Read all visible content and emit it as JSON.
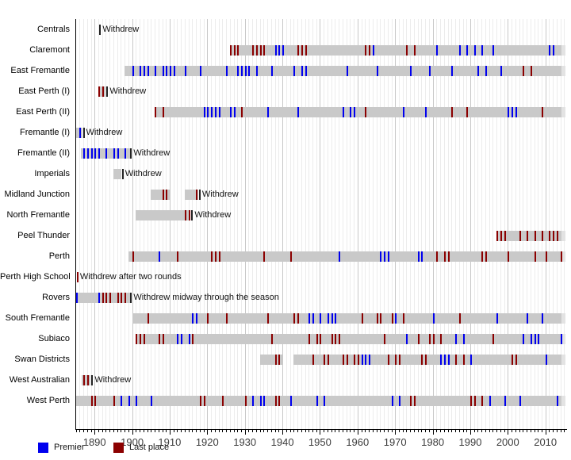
{
  "legend": {
    "premier": "Premier",
    "last_place": "Last place"
  },
  "colors": {
    "premier": "#0000ee",
    "last_place": "#8b0000",
    "bar": "#c9c9c9",
    "bar_current_season": "#e3e3e3",
    "withdrew_marker": "#222222",
    "grid_minor": "#ececec",
    "grid_major": "#c7c7c7",
    "axis": "#000000"
  },
  "chart_data": {
    "type": "timeline",
    "title": "",
    "x_axis": {
      "range_start": 1884,
      "range_end": 2015.5,
      "major_tick_labels": [
        "1890",
        "1900",
        "1910",
        "1920",
        "1930",
        "1940",
        "1950",
        "1960",
        "1970",
        "1980",
        "1990",
        "2000",
        "2010"
      ],
      "major_tick_years": [
        1890,
        1900,
        1910,
        1920,
        1930,
        1940,
        1950,
        1960,
        1970,
        1980,
        1990,
        2000,
        2010
      ],
      "minor_tick_interval": 1,
      "grid": true
    },
    "legend_position": "bottom-left",
    "clubs": [
      {
        "name": "Centrals",
        "segments": [],
        "current": false,
        "premier_years": [],
        "last_place_years": [],
        "withdrew": {
          "label": "Withdrew",
          "year": 1891.3
        }
      },
      {
        "name": "Claremont",
        "segments": [
          [
            1926,
            2015
          ]
        ],
        "current": true,
        "premier_years": [
          1938,
          1939,
          1940,
          1964,
          1981,
          1987,
          1989,
          1991,
          1993,
          1996,
          2011,
          2012
        ],
        "last_place_years": [
          1926,
          1927,
          1928,
          1932,
          1933,
          1934,
          1935,
          1944,
          1945,
          1946,
          1962,
          1963,
          1973,
          1975
        ],
        "withdrew": null
      },
      {
        "name": "East Fremantle",
        "segments": [
          [
            1898,
            2015
          ]
        ],
        "current": true,
        "premier_years": [
          1900,
          1902,
          1903,
          1904,
          1906,
          1908,
          1909,
          1910,
          1911,
          1914,
          1918,
          1925,
          1928,
          1929,
          1930,
          1931,
          1933,
          1937,
          1943,
          1945,
          1946,
          1957,
          1965,
          1974,
          1979,
          1985,
          1992,
          1994,
          1998
        ],
        "last_place_years": [
          2004,
          2006
        ],
        "withdrew": null
      },
      {
        "name": "East Perth (I)",
        "segments": [
          [
            1891,
            1893
          ]
        ],
        "current": false,
        "premier_years": [],
        "last_place_years": [
          1891,
          1892
        ],
        "withdrew": {
          "label": "Withdrew",
          "year": 1893.2
        }
      },
      {
        "name": "East Perth (II)",
        "segments": [
          [
            1906,
            2015
          ]
        ],
        "current": true,
        "premier_years": [
          1919,
          1920,
          1921,
          1922,
          1923,
          1926,
          1927,
          1936,
          1944,
          1956,
          1958,
          1959,
          1972,
          1978,
          2000,
          2001,
          2002
        ],
        "last_place_years": [
          1906,
          1908,
          1929,
          1962,
          1985,
          1989,
          2009
        ],
        "withdrew": null
      },
      {
        "name": "Fremantle (I)",
        "segments": [
          [
            1885,
            1886.7
          ]
        ],
        "current": false,
        "premier_years": [
          1886
        ],
        "last_place_years": [],
        "withdrew": {
          "label": "Withdrew",
          "year": 1886.9
        }
      },
      {
        "name": "Fremantle (II)",
        "segments": [
          [
            1886.3,
            1899.4
          ]
        ],
        "current": false,
        "premier_years": [
          1887,
          1888,
          1889,
          1890,
          1891,
          1893,
          1895,
          1896,
          1898
        ],
        "last_place_years": [],
        "withdrew": {
          "label": "Withdrew",
          "year": 1899.55
        }
      },
      {
        "name": "Imperials",
        "segments": [
          [
            1895,
            1897.1
          ]
        ],
        "current": false,
        "premier_years": [],
        "last_place_years": [],
        "withdrew": {
          "label": "Withdrew",
          "year": 1897.3
        }
      },
      {
        "name": "Midland Junction",
        "segments": [
          [
            1905,
            1910
          ],
          [
            1914,
            1917.6
          ]
        ],
        "current": false,
        "premier_years": [],
        "last_place_years": [
          1908,
          1909,
          1917
        ],
        "withdrew": {
          "label": "Withdrew",
          "year": 1917.8
        }
      },
      {
        "name": "North Fremantle",
        "segments": [
          [
            1901,
            1915.6
          ]
        ],
        "current": false,
        "premier_years": [],
        "last_place_years": [
          1914,
          1915
        ],
        "withdrew": {
          "label": "Withdrew",
          "year": 1915.8
        }
      },
      {
        "name": "Peel Thunder",
        "segments": [
          [
            1997,
            2015
          ]
        ],
        "current": true,
        "premier_years": [],
        "last_place_years": [
          1997,
          1998,
          1999,
          2003,
          2005,
          2007,
          2009,
          2011,
          2012,
          2013
        ],
        "withdrew": null
      },
      {
        "name": "Perth",
        "segments": [
          [
            1899,
            2015
          ]
        ],
        "current": true,
        "premier_years": [
          1907,
          1955,
          1966,
          1967,
          1968,
          1976,
          1977
        ],
        "last_place_years": [
          1900,
          1912,
          1921,
          1922,
          1923,
          1935,
          1942,
          1981,
          1983,
          1984,
          1993,
          1994,
          2000,
          2007,
          2010,
          2014
        ],
        "withdrew": null
      },
      {
        "name": "Perth High School",
        "segments": [],
        "current": false,
        "premier_years": [],
        "last_place_years": [],
        "withdrew": {
          "label": "Withdrew after two rounds",
          "year": 1885.3,
          "marker_color": "#8b0000"
        }
      },
      {
        "name": "Rovers",
        "segments": [
          [
            1885,
            1899.4
          ]
        ],
        "current": false,
        "premier_years": [
          1885,
          1891
        ],
        "last_place_years": [
          1892,
          1893,
          1894,
          1896,
          1897,
          1898
        ],
        "withdrew": {
          "label": "Withdrew midway through the season",
          "year": 1899.55
        }
      },
      {
        "name": "South Fremantle",
        "segments": [
          [
            1900,
            2015
          ]
        ],
        "current": true,
        "premier_years": [
          1916,
          1917,
          1947,
          1948,
          1950,
          1952,
          1953,
          1954,
          1970,
          1980,
          1997,
          2005,
          2009
        ],
        "last_place_years": [
          1904,
          1920,
          1925,
          1936,
          1943,
          1944,
          1961,
          1965,
          1966,
          1969,
          1972,
          1987
        ],
        "withdrew": null
      },
      {
        "name": "Subiaco",
        "segments": [
          [
            1901,
            2015
          ]
        ],
        "current": true,
        "premier_years": [
          1912,
          1913,
          1915,
          1973,
          1986,
          1988,
          2004,
          2006,
          2007,
          2008,
          2014
        ],
        "last_place_years": [
          1901,
          1902,
          1903,
          1907,
          1908,
          1916,
          1937,
          1947,
          1949,
          1950,
          1953,
          1954,
          1955,
          1967,
          1976,
          1979,
          1980,
          1982,
          1996
        ],
        "withdrew": null
      },
      {
        "name": "Swan Districts",
        "segments": [
          [
            1934,
            1940
          ],
          [
            1943,
            2015
          ]
        ],
        "current": true,
        "premier_years": [
          1961,
          1962,
          1963,
          1982,
          1983,
          1984,
          1990,
          2010
        ],
        "last_place_years": [
          1938,
          1939,
          1948,
          1951,
          1952,
          1956,
          1957,
          1959,
          1960,
          1968,
          1970,
          1971,
          1977,
          1978,
          1986,
          1988,
          2001,
          2002
        ],
        "withdrew": null
      },
      {
        "name": "West Australian",
        "segments": [
          [
            1886.6,
            1889
          ]
        ],
        "current": false,
        "premier_years": [],
        "last_place_years": [
          1887,
          1888
        ],
        "withdrew": {
          "label": "Withdrew",
          "year": 1889.2
        }
      },
      {
        "name": "West Perth",
        "segments": [
          [
            1885,
            2015
          ]
        ],
        "current": true,
        "premier_years": [
          1897,
          1899,
          1901,
          1905,
          1932,
          1934,
          1935,
          1942,
          1949,
          1951,
          1969,
          1971,
          1995,
          1999,
          2003,
          2013
        ],
        "last_place_years": [
          1889,
          1890,
          1895,
          1918,
          1919,
          1924,
          1930,
          1938,
          1939,
          1974,
          1975,
          1990,
          1991,
          1993
        ],
        "withdrew": null
      }
    ]
  }
}
